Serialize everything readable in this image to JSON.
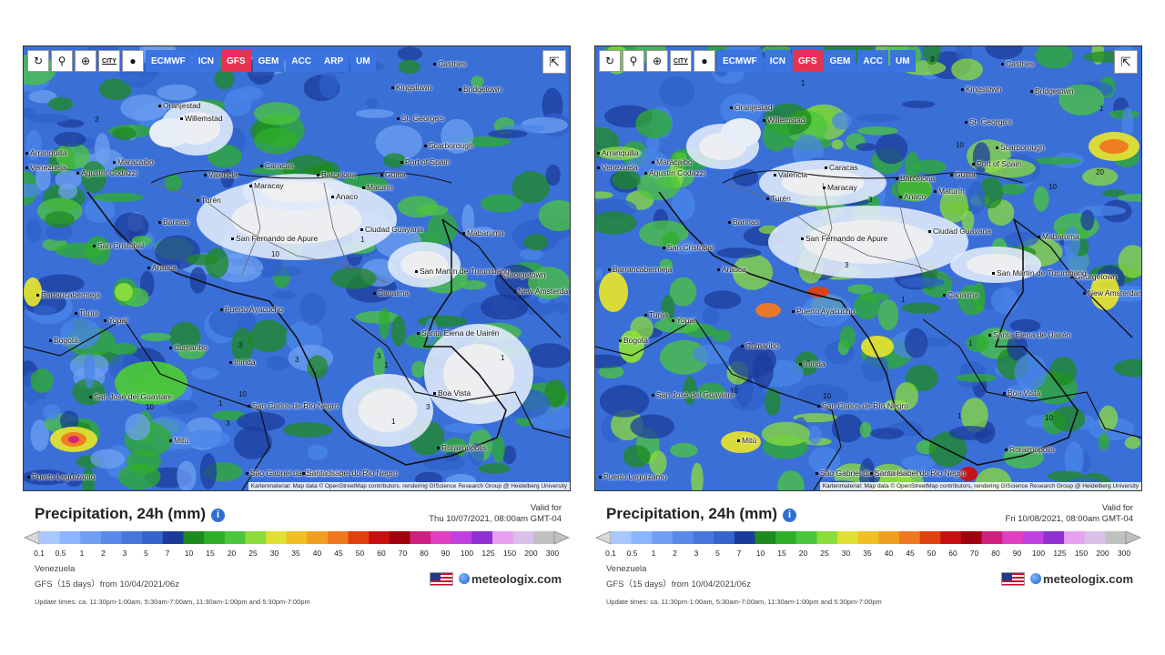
{
  "toolbar": {
    "icons": [
      "refresh-icon",
      "location-pin-icon",
      "zoom-icon",
      "city-icon",
      "dot-icon"
    ],
    "city_icon_label": "CITY",
    "models": [
      "ECMWF",
      "ICN",
      "GFS",
      "GEM",
      "ACC",
      "ARP",
      "UM"
    ]
  },
  "title": "Precipitation, 24h (mm)",
  "valid_label": "Valid for",
  "legend_labels": [
    "0.1",
    "0.5",
    "1",
    "2",
    "3",
    "5",
    "7",
    "10",
    "15",
    "20",
    "25",
    "30",
    "35",
    "40",
    "45",
    "50",
    "60",
    "70",
    "80",
    "90",
    "100",
    "125",
    "150",
    "200",
    "300"
  ],
  "legend_colors": [
    "#a8c8ff",
    "#8cb6ff",
    "#6fa0f5",
    "#5a8ae8",
    "#4678dc",
    "#3464cc",
    "#1c3c9c",
    "#1f8a1f",
    "#2fae2a",
    "#4cc63c",
    "#8cdc3c",
    "#e0e030",
    "#f0c020",
    "#f0a020",
    "#f07820",
    "#e04010",
    "#c81010",
    "#a00010",
    "#d02080",
    "#e040c0",
    "#c040e0",
    "#9030d0",
    "#e8a0f0",
    "#d8c0e8",
    "#c0c0c0"
  ],
  "region": "Venezuela",
  "model_run": "GFS（15 days）from 10/04/2021/06z",
  "update_times": "Update times: ca. 11:30pm-1:00am, 5:30am-7:00am, 11:30am-1:00pm and 5:30pm-7:00pm",
  "brand": "meteologix.com",
  "attribution": "Kartenmaterial: Map data © OpenStreetMap contributors, rendering GIScience Research Group @ Heidelberg University",
  "colors": {
    "active_model": "#e63352",
    "model_button": "#3b73e0",
    "info_icon": "#2f6fd6"
  },
  "panels": [
    {
      "valid_time": "Thu 10/07/2021, 08:00am GMT-04",
      "active_model": "GFS",
      "contour_labels": [
        "3",
        "1",
        "10",
        "3",
        "10",
        "1",
        "10",
        "3",
        "3",
        "1",
        "1",
        "1",
        "3",
        "3"
      ],
      "cities": [
        "Castries",
        "Oranjestad",
        "Willemstad",
        "Kingstown",
        "Bridgetown",
        "St. George's",
        "Scarborough",
        "Arranquilla",
        "Maracaibo",
        "Caracas",
        "Barcelona",
        "Port of Spain",
        "Agustín Codazzi",
        "Valencia",
        "Maracay",
        "Güiria",
        "Venezuela",
        "Turén",
        "Anaco",
        "Maturín",
        "Barinas",
        "San Fernando de Apure",
        "Ciudad Guayana",
        "Mabaruma",
        "San Cristóbal",
        "Barrancabermeja",
        "Arauca",
        "Georgetown",
        "San Martín de Turumbang",
        "New Amsterdam",
        "Canaima",
        "Tunja",
        "Yopal",
        "Puerto Ayacucho",
        "Bogotá",
        "Santa Elena de Uairén",
        "Cumaribo",
        "Inírida",
        "Boa Vista",
        "San José del Guaviare",
        "San Carlos de Río Negro",
        "Mitú",
        "Roraimópolis",
        "Puerto Leguízamo",
        "São Gabriel da Cachoeira",
        "Santa Isabel do Rio Negro"
      ]
    },
    {
      "valid_time": "Fri 10/08/2021, 08:00am GMT-04",
      "active_model": "GFS",
      "contour_labels": [
        "3",
        "1",
        "1",
        "10",
        "20",
        "10",
        "3",
        "1",
        "3",
        "1",
        "10",
        "10",
        "10",
        "3",
        "1"
      ],
      "cities": [
        "Castries",
        "Oranjestad",
        "Willemstad",
        "Kingstown",
        "Bridgetown",
        "St. George's",
        "Scarborough",
        "Arranquilla",
        "Maracaibo",
        "Caracas",
        "Barcelona",
        "Port of Spain",
        "Agustín Codazzi",
        "Valencia",
        "Maracay",
        "Güiria",
        "Venezuela",
        "Turén",
        "Anaco",
        "Maturín",
        "Barinas",
        "San Fernando de Apure",
        "Ciudad Guayana",
        "Mabaruma",
        "San Cristóbal",
        "Barrancabermeja",
        "Arauca",
        "Georgetown",
        "San Martín de Turumbang",
        "New Amsterdam",
        "Canaima",
        "Tunja",
        "Yopal",
        "Puerto Ayacucho",
        "Bogotá",
        "Santa Elena de Uairén",
        "Cumaribo",
        "Inírida",
        "Boa Vista",
        "San José del Guaviare",
        "San Carlos de Río Negro",
        "Mitú",
        "Roraimópolis",
        "Puerto Leguízamo",
        "São Gabriel da Cachoeira",
        "Santa Isabel do Rio Negro"
      ]
    }
  ]
}
